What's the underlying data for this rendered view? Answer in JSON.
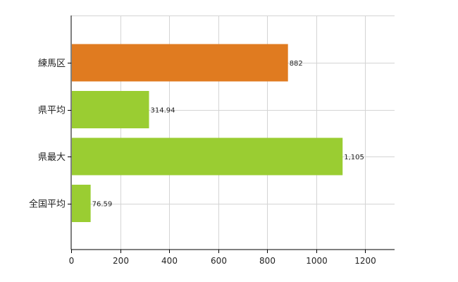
{
  "chart_data": {
    "type": "bar",
    "orientation": "horizontal",
    "categories": [
      "練馬区",
      "県平均",
      "県最大",
      "全国平均"
    ],
    "values": [
      882,
      314.94,
      1105,
      76.59
    ],
    "value_labels": [
      "882",
      "314.94",
      "1,105",
      "76.59"
    ],
    "bar_colors": [
      "#e07b20",
      "#9acd32",
      "#9acd32",
      "#9acd32"
    ],
    "xlim": [
      0,
      1320
    ],
    "xticks": [
      0,
      200,
      400,
      600,
      800,
      1000,
      1200
    ],
    "grid": true
  }
}
